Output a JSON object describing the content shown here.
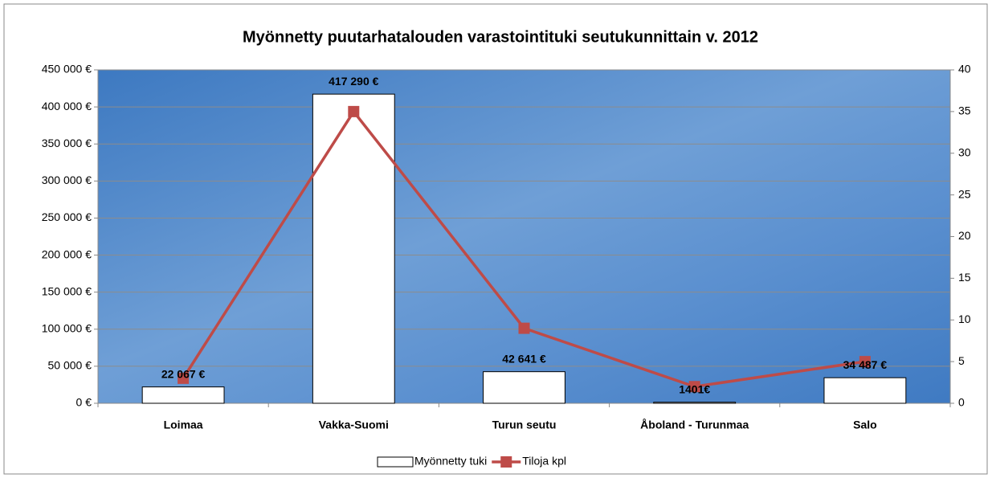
{
  "chart_data": {
    "type": "bar",
    "title": "Myönnetty puutarhatalouden varastointituki seutukunnittain v. 2012",
    "categories": [
      "Loimaa",
      "Vakka-Suomi",
      "Turun seutu",
      "Åboland - Turunmaa",
      "Salo"
    ],
    "series": [
      {
        "name": "Myönnetty tuki",
        "type": "bar",
        "color": "#ffffff",
        "values": [
          22067,
          417290,
          42641,
          1401,
          34487
        ],
        "value_labels": [
          "22 067 €",
          "417 290 €",
          "42 641 €",
          "1401€",
          "34 487 €"
        ]
      },
      {
        "name": "Tiloja kpl",
        "type": "line",
        "color": "#be4b48",
        "axis": "y2",
        "values": [
          3,
          35,
          9,
          2,
          5
        ]
      }
    ],
    "ylim": [
      0,
      450000
    ],
    "yticks": [
      {
        "value": 0,
        "label": "0 €"
      },
      {
        "value": 50000,
        "label": "50 000 €"
      },
      {
        "value": 100000,
        "label": "100 000 €"
      },
      {
        "value": 150000,
        "label": "150 000 €"
      },
      {
        "value": 200000,
        "label": "200 000 €"
      },
      {
        "value": 250000,
        "label": "250 000 €"
      },
      {
        "value": 300000,
        "label": "300 000 €"
      },
      {
        "value": 350000,
        "label": "350 000 €"
      },
      {
        "value": 400000,
        "label": "400 000 €"
      },
      {
        "value": 450000,
        "label": "450 000 €"
      }
    ],
    "y2lim": [
      0,
      40
    ],
    "y2ticks": [
      0,
      5,
      10,
      15,
      20,
      25,
      30,
      35,
      40
    ],
    "grid": true,
    "legend": "bottom"
  }
}
